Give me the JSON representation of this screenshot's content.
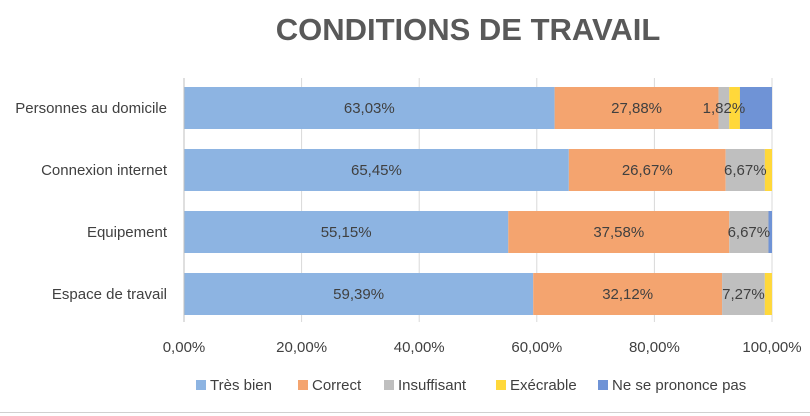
{
  "chart_data": {
    "type": "bar",
    "orientation": "horizontal",
    "stacked": true,
    "title": "CONDITIONS DE TRAVAIL",
    "categories": [
      "Personnes au domicile",
      "Connexion internet",
      "Equipement",
      "Espace de travail"
    ],
    "series": [
      {
        "name": "Très bien",
        "color": "#8db4e2",
        "values": [
          63.03,
          65.45,
          55.15,
          59.39
        ]
      },
      {
        "name": "Correct",
        "color": "#f4a46f",
        "values": [
          27.88,
          26.67,
          37.58,
          32.12
        ]
      },
      {
        "name": "Insuffisant",
        "color": "#bfbfbf",
        "values": [
          1.82,
          6.67,
          6.67,
          7.27
        ]
      },
      {
        "name": "Exécrable",
        "color": "#ffd83a",
        "values": [
          1.82,
          1.21,
          0.0,
          1.21
        ]
      },
      {
        "name": "Ne se prononce pas",
        "color": "#6f93d6",
        "values": [
          5.45,
          0.0,
          0.6,
          0.0
        ]
      }
    ],
    "data_labels": [
      [
        "63,03%",
        "27,88%",
        "1,82%",
        null,
        null
      ],
      [
        "65,45%",
        "26,67%",
        "6,67%",
        null,
        null
      ],
      [
        "55,15%",
        "37,58%",
        "6,67%",
        null,
        null
      ],
      [
        "59,39%",
        "32,12%",
        "7,27%",
        null,
        null
      ]
    ],
    "x_ticks": [
      "0,00%",
      "20,00%",
      "40,00%",
      "60,00%",
      "80,00%",
      "100,00%"
    ],
    "xlim": [
      0,
      100
    ],
    "grid": true,
    "legend_position": "bottom"
  }
}
